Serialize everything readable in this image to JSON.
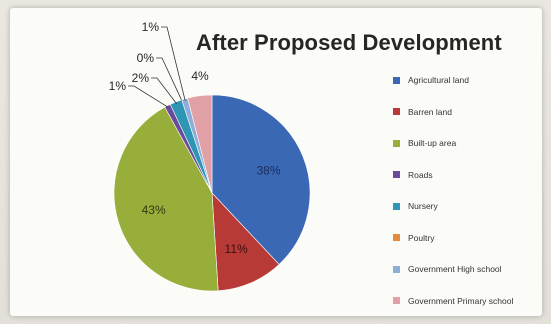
{
  "chart_data": {
    "type": "pie",
    "title": "After Proposed Development",
    "legend_position": "right",
    "slices": [
      {
        "name": "Agricultural land",
        "value": 38,
        "label": "38%",
        "color": "#3a68b5"
      },
      {
        "name": "Barren land",
        "value": 11,
        "label": "11%",
        "color": "#b73a36"
      },
      {
        "name": "Built-up area",
        "value": 43,
        "label": "43%",
        "color": "#98ae3a"
      },
      {
        "name": "Roads",
        "value": 1,
        "label": "1%",
        "color": "#6a4a9a"
      },
      {
        "name": "Nursery",
        "value": 2,
        "label": "2%",
        "color": "#2e96b4"
      },
      {
        "name": "Poultry",
        "value": 0,
        "label": "0%",
        "color": "#e48a3c"
      },
      {
        "name": "Government  High school",
        "value": 1,
        "label": "1%",
        "color": "#8eaed9"
      },
      {
        "name": "Government  Primary school",
        "value": 4,
        "label": "4%",
        "color": "#e0a0a6"
      }
    ]
  }
}
